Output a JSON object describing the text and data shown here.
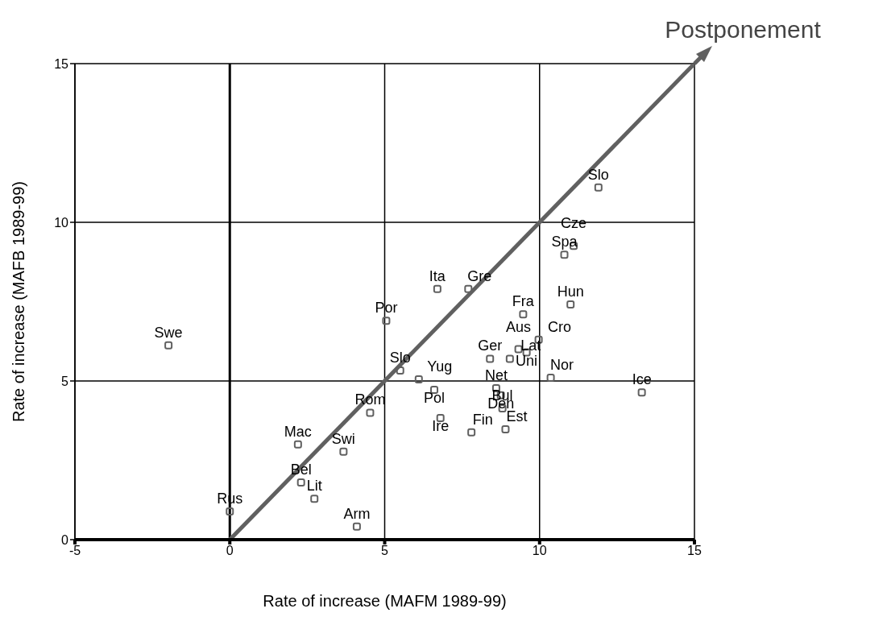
{
  "chart_data": {
    "type": "scatter",
    "xlabel": "Rate of increase (MAFM 1989-99)",
    "ylabel": "Rate of increase (MAFB 1989-99)",
    "xlim": [
      -5,
      15
    ],
    "ylim": [
      0,
      15
    ],
    "xticks": [
      -5,
      0,
      5,
      10,
      15
    ],
    "yticks": [
      0,
      5,
      10,
      15
    ],
    "grid": true,
    "marker": "square",
    "ref_lines": [
      {
        "axis": "x",
        "value": 0,
        "color": "#000000"
      }
    ],
    "series": [
      {
        "color": "#606060",
        "x": [
          -1.98,
          5.05,
          5.5,
          6.1,
          6.6,
          6.7,
          7.7,
          6.8,
          7.8,
          4.53,
          2.2,
          3.67,
          2.3,
          2.73,
          0,
          4.1,
          8.4,
          9.04,
          9.32,
          9.58,
          9.47,
          9.97,
          8.6,
          8.75,
          8.8,
          8.9,
          10.36,
          11,
          10.8,
          11.1,
          11.9,
          13.3
        ],
        "values": [
          6.12,
          6.9,
          5.33,
          5.05,
          4.72,
          7.9,
          7.9,
          3.83,
          3.38,
          4,
          3,
          2.77,
          1.8,
          1.29,
          0.89,
          0.41,
          5.7,
          5.7,
          6,
          5.9,
          7.1,
          6.3,
          4.77,
          4.55,
          4.14,
          3.48,
          5.1,
          7.41,
          8.98,
          9.26,
          11.1,
          4.64
        ]
      },
      {
        "type": "line",
        "name": "Postponement",
        "color": "#606060",
        "marker": "none",
        "x": [
          0,
          15
        ],
        "values": [
          0,
          15
        ]
      }
    ],
    "annotations": [
      {
        "text": "Swe",
        "x": -1.98,
        "y": 6.12
      },
      {
        "text": "Por",
        "x": 5.05,
        "y": 6.9
      },
      {
        "text": "Slo",
        "x": 5.5,
        "y": 5.33
      },
      {
        "text": "Yug",
        "x": 6.1,
        "y": 5.05
      },
      {
        "text": "Pol",
        "x": 6.6,
        "y": 4.72
      },
      {
        "text": "Ita",
        "x": 6.7,
        "y": 7.9
      },
      {
        "text": "Gre",
        "x": 7.7,
        "y": 7.9
      },
      {
        "text": "Ire",
        "x": 6.8,
        "y": 3.83
      },
      {
        "text": "Fin",
        "x": 7.8,
        "y": 3.38
      },
      {
        "text": "Rom",
        "x": 4.53,
        "y": 4
      },
      {
        "text": "Mac",
        "x": 2.2,
        "y": 3
      },
      {
        "text": "Swi",
        "x": 3.67,
        "y": 2.77
      },
      {
        "text": "Bel",
        "x": 2.3,
        "y": 1.8
      },
      {
        "text": "Lit",
        "x": 2.73,
        "y": 1.29
      },
      {
        "text": "Rus",
        "x": 0,
        "y": 0.89
      },
      {
        "text": "Arm",
        "x": 4.1,
        "y": 0.41
      },
      {
        "text": "Ger",
        "x": 8.4,
        "y": 5.7
      },
      {
        "text": "Lat",
        "x": 9.04,
        "y": 5.7
      },
      {
        "text": "Aus",
        "x": 9.32,
        "y": 6
      },
      {
        "text": "Uni",
        "x": 9.58,
        "y": 5.9
      },
      {
        "text": "Fra",
        "x": 9.47,
        "y": 7.1
      },
      {
        "text": "Cro",
        "x": 9.97,
        "y": 6.3
      },
      {
        "text": "Net",
        "x": 8.6,
        "y": 4.77
      },
      {
        "text": "Den",
        "x": 8.75,
        "y": 4.55
      },
      {
        "text": "Bul",
        "x": 8.8,
        "y": 4.14
      },
      {
        "text": "Est",
        "x": 8.9,
        "y": 3.48
      },
      {
        "text": "Nor",
        "x": 10.36,
        "y": 5.1
      },
      {
        "text": "Hun",
        "x": 11,
        "y": 7.41
      },
      {
        "text": "Spa",
        "x": 10.8,
        "y": 8.98
      },
      {
        "text": "Cze",
        "x": 11.1,
        "y": 9.26
      },
      {
        "text": "Slo",
        "x": 11.9,
        "y": 11.1
      },
      {
        "text": "Ice",
        "x": 13.3,
        "y": 4.64
      }
    ]
  }
}
